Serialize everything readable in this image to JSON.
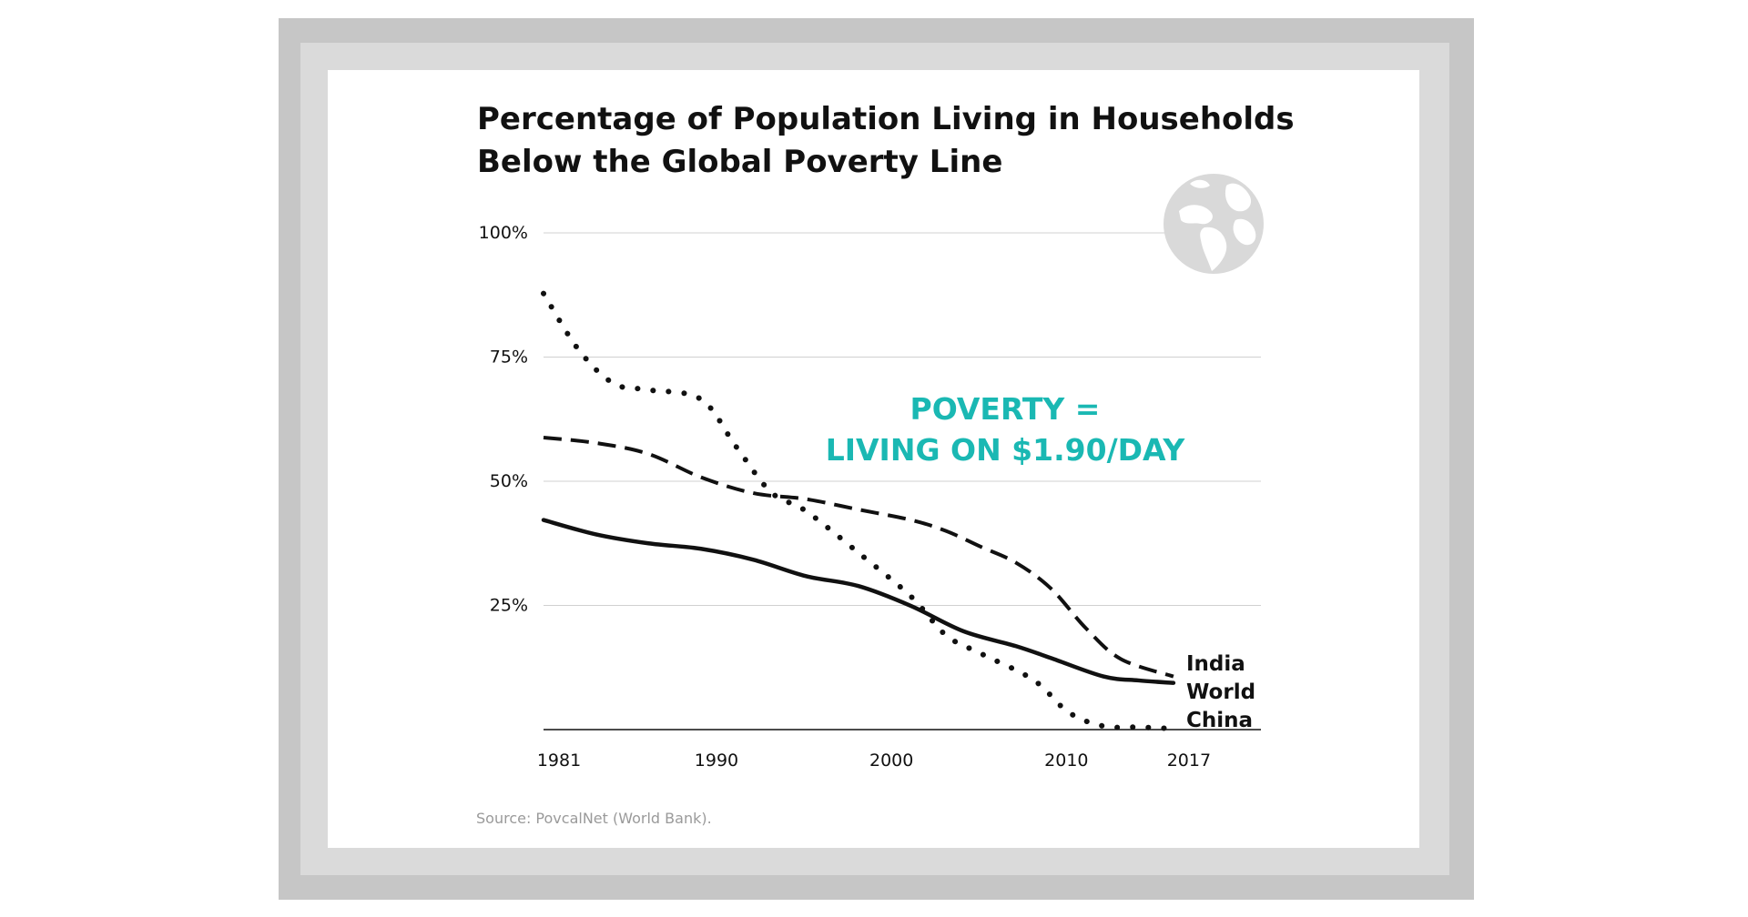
{
  "title_lines": [
    "Percentage of Population Living in Households",
    "Below the Global Poverty Line"
  ],
  "source": "Source: PovcalNet (World Bank).",
  "annotation_lines": [
    "POVERTY =",
    "LIVING ON $1.90/DAY"
  ],
  "colors": {
    "frame_outer": "#c6c6c6",
    "frame_inner": "#dadada",
    "panel": "#ffffff",
    "ink": "#111111",
    "annotation": "#1ab8b3",
    "grid": "#d0d0d0",
    "globe": "#d9d9d9"
  },
  "icons": [
    "globe-icon"
  ],
  "chart_data": {
    "type": "line",
    "title": "Percentage of Population Living in Households Below the Global Poverty Line",
    "xlabel": "",
    "ylabel": "",
    "x_ticks": [
      "1981",
      "1990",
      "2000",
      "2010",
      "2017"
    ],
    "y_ticks": [
      "100%",
      "75%",
      "50%",
      "25%"
    ],
    "ylim": [
      0,
      100
    ],
    "xlim": [
      1981,
      2022
    ],
    "grid": "horizontal",
    "legend": "end-of-line labels",
    "series": [
      {
        "name": "India",
        "style": "dashed",
        "points": [
          [
            1981,
            58.8
          ],
          [
            1984,
            57.7
          ],
          [
            1987,
            55.5
          ],
          [
            1990,
            50.8
          ],
          [
            1993,
            47.6
          ],
          [
            1996,
            46.4
          ],
          [
            1999,
            44.3
          ],
          [
            2002,
            42.2
          ],
          [
            2004,
            40.0
          ],
          [
            2006,
            36.8
          ],
          [
            2008,
            33.6
          ],
          [
            2010,
            28.4
          ],
          [
            2012,
            20.4
          ],
          [
            2014,
            14.2
          ],
          [
            2017,
            10.7
          ]
        ]
      },
      {
        "name": "World",
        "style": "solid",
        "points": [
          [
            1981,
            42.2
          ],
          [
            1984,
            39.3
          ],
          [
            1987,
            37.5
          ],
          [
            1990,
            36.4
          ],
          [
            1993,
            34.2
          ],
          [
            1996,
            30.9
          ],
          [
            1999,
            28.9
          ],
          [
            2002,
            24.9
          ],
          [
            2005,
            19.8
          ],
          [
            2008,
            16.8
          ],
          [
            2010,
            14.4
          ],
          [
            2013,
            10.7
          ],
          [
            2015,
            9.9
          ],
          [
            2017,
            9.4
          ]
        ]
      },
      {
        "name": "China",
        "style": "dotted",
        "points": [
          [
            1981,
            87.8
          ],
          [
            1983,
            76.5
          ],
          [
            1985,
            69.7
          ],
          [
            1987,
            68.4
          ],
          [
            1990,
            66.5
          ],
          [
            1992,
            57.0
          ],
          [
            1994,
            47.8
          ],
          [
            1996,
            44.0
          ],
          [
            1999,
            35.6
          ],
          [
            2002,
            26.8
          ],
          [
            2004,
            19.0
          ],
          [
            2006,
            15.3
          ],
          [
            2009,
            10.0
          ],
          [
            2011,
            3.5
          ],
          [
            2013,
            0.7
          ],
          [
            2015,
            0.5
          ],
          [
            2017,
            0.2
          ]
        ]
      }
    ]
  }
}
